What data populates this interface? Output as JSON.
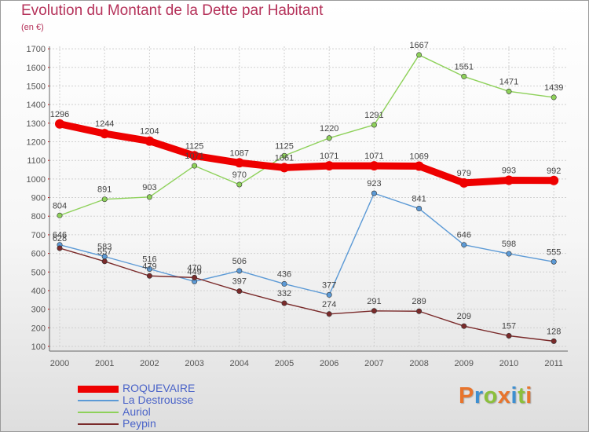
{
  "header": {
    "title": "Evolution du Montant de la Dette par Habitant",
    "subtitle": "(en €)"
  },
  "logo": {
    "letters": [
      "P",
      "r",
      "o",
      "x",
      "i",
      "t",
      "i"
    ],
    "colors": [
      "#e8742c",
      "#3d8fd1",
      "#8bbf3c",
      "#e8742c",
      "#3d8fd1",
      "#8bbf3c",
      "#e8742c"
    ]
  },
  "colors": {
    "title": "#b5325a",
    "axis": "#555555",
    "grid": "#d0d0d0",
    "tick_mark": "#cc0000",
    "legend_text": "#4a63c8"
  },
  "chart_data": {
    "type": "line",
    "x": [
      "2000",
      "2001",
      "2002",
      "2003",
      "2004",
      "2005",
      "2006",
      "2007",
      "2008",
      "2009",
      "2010",
      "2011"
    ],
    "ylim": [
      100,
      1700
    ],
    "yticks": [
      "100",
      "200",
      "300",
      "400",
      "500",
      "600",
      "700",
      "800",
      "900",
      "1000",
      "1100",
      "1200",
      "1300",
      "1400",
      "1500",
      "1600",
      "1700"
    ],
    "grid": true,
    "legend_position": "bottom-left",
    "series": [
      {
        "name": "ROQUEVAIRE",
        "color": "#ee0000",
        "values": [
          1296,
          1244,
          1204,
          1125,
          1087,
          1061,
          1071,
          1071,
          1069,
          979,
          993,
          992
        ]
      },
      {
        "name": "La Destrousse",
        "color": "#5c9ad6",
        "values": [
          646,
          583,
          516,
          449,
          506,
          436,
          377,
          923,
          841,
          646,
          598,
          555
        ]
      },
      {
        "name": "Auriol",
        "color": "#8ed15a",
        "values": [
          804,
          891,
          903,
          1071,
          970,
          1125,
          1220,
          1291,
          1667,
          1551,
          1471,
          1439
        ]
      },
      {
        "name": "Peypin",
        "color": "#7a2a2a",
        "values": [
          628,
          557,
          479,
          470,
          397,
          332,
          274,
          291,
          289,
          209,
          157,
          128
        ]
      }
    ]
  }
}
